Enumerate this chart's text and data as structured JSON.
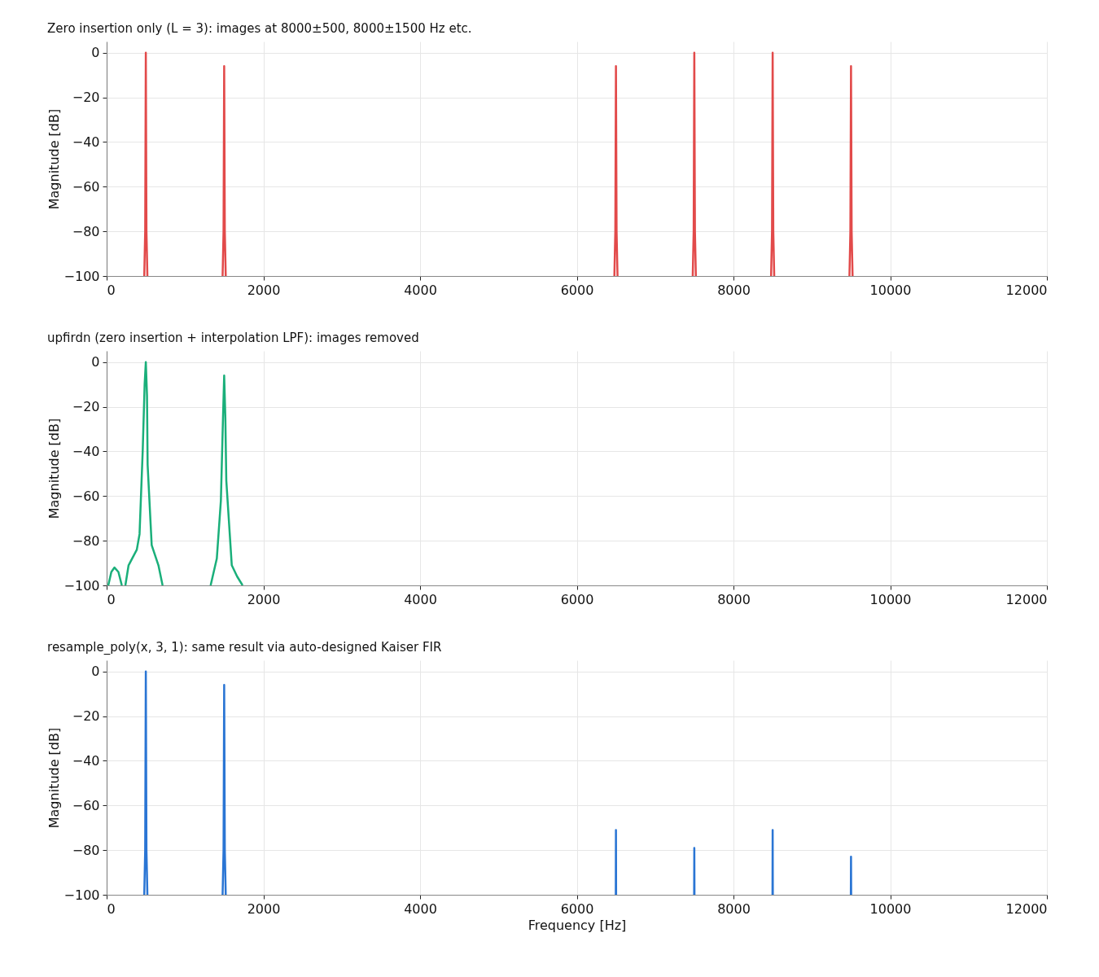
{
  "chart_data": [
    {
      "type": "line",
      "title": "Zero insertion only (L = 3): images at 8000±500, 8000±1500 Hz etc.",
      "ylabel": "Magnitude [dB]",
      "x": [
        480,
        492,
        500,
        508,
        520,
        530,
        1480,
        1492,
        1500,
        1508,
        1520,
        1530,
        6480,
        6492,
        6500,
        6508,
        6520,
        6530,
        7480,
        7492,
        7500,
        7508,
        7520,
        7530,
        8480,
        8492,
        8500,
        8508,
        8520,
        8530,
        9480,
        9492,
        9500,
        9508,
        9520
      ],
      "series": [
        {
          "color": "#e24a4a",
          "values": [
            -100,
            -80,
            0,
            -80,
            -100,
            null,
            -100,
            -80,
            -6,
            -80,
            -100,
            null,
            -100,
            -80,
            -6,
            -80,
            -100,
            null,
            -100,
            -80,
            0,
            -80,
            -100,
            null,
            -100,
            -80,
            0,
            -80,
            -100,
            null,
            -100,
            -80,
            -6,
            -80,
            -100
          ]
        }
      ],
      "xlim": [
        0,
        12000
      ],
      "xticks": [
        0,
        2000,
        4000,
        6000,
        8000,
        10000,
        12000
      ],
      "ylim": [
        -100,
        5
      ],
      "yticks": [
        -100,
        -80,
        -60,
        -40,
        -20,
        0
      ],
      "grid": true
    },
    {
      "type": "line",
      "title": "upfirdn (zero insertion + interpolation LPF): images removed",
      "ylabel": "Magnitude [dB]",
      "x": [
        21,
        60,
        100,
        150,
        194,
        215,
        239,
        280,
        385,
        420,
        460,
        485,
        500,
        515,
        523,
        575,
        661,
        714,
        1000,
        1327,
        1406,
        1458,
        1485,
        1500,
        1515,
        1527,
        1597,
        1665,
        1735
      ],
      "series": [
        {
          "color": "#1aaf7a",
          "values": [
            -100,
            -94,
            -92,
            -94,
            -100,
            null,
            -100,
            -91,
            -84,
            -77,
            -40,
            -10,
            0,
            -15,
            -46,
            -82,
            -91,
            -100,
            null,
            -100,
            -88,
            -62,
            -25,
            -6,
            -25,
            -53,
            -91,
            -96,
            -100
          ]
        }
      ],
      "xlim": [
        0,
        12000
      ],
      "xticks": [
        0,
        2000,
        4000,
        6000,
        8000,
        10000,
        12000
      ],
      "ylim": [
        -100,
        5
      ],
      "yticks": [
        -100,
        -80,
        -60,
        -40,
        -20,
        0
      ],
      "grid": true
    },
    {
      "type": "line",
      "title": "resample_poly(x, 3, 1): same result via auto-designed Kaiser FIR",
      "xlabel": "Frequency [Hz]",
      "ylabel": "Magnitude [dB]",
      "x": [
        480,
        492,
        500,
        508,
        520,
        530,
        1480,
        1492,
        1500,
        1508,
        1520,
        1530,
        6498,
        6500,
        6502,
        6510,
        7498,
        7500,
        7502,
        7510,
        8498,
        8500,
        8502,
        8510,
        9498,
        9500,
        9502
      ],
      "series": [
        {
          "color": "#2a75d4",
          "values": [
            -100,
            -80,
            0,
            -80,
            -100,
            null,
            -100,
            -80,
            -6,
            -80,
            -100,
            null,
            -100,
            -71,
            -100,
            null,
            -100,
            -79,
            -100,
            null,
            -100,
            -71,
            -100,
            null,
            -100,
            -83,
            -100
          ]
        }
      ],
      "xlim": [
        0,
        12000
      ],
      "xticks": [
        0,
        2000,
        4000,
        6000,
        8000,
        10000,
        12000
      ],
      "ylim": [
        -100,
        5
      ],
      "yticks": [
        -100,
        -80,
        -60,
        -40,
        -20,
        0
      ],
      "grid": true
    }
  ]
}
